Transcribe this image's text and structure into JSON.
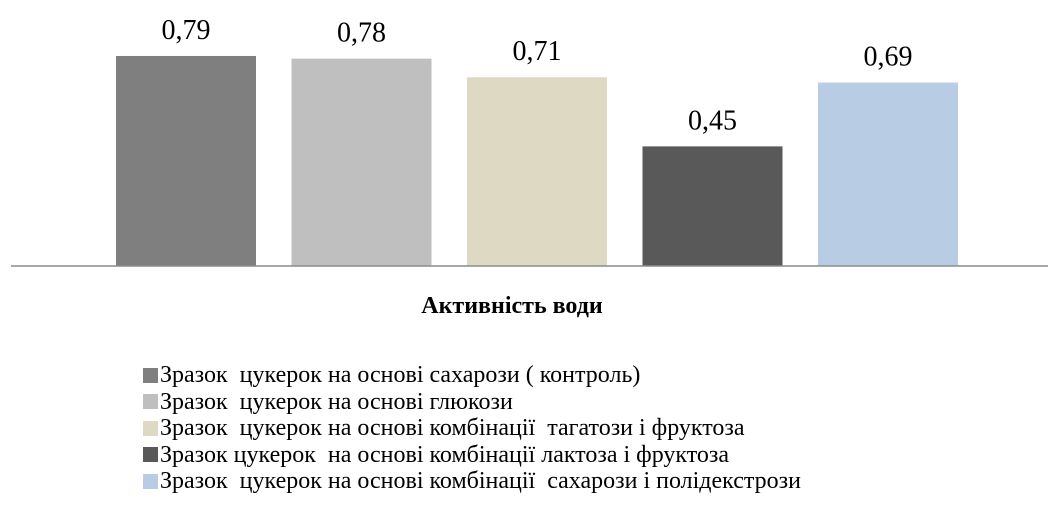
{
  "chart_data": {
    "type": "bar",
    "xlabel": "Активність води",
    "ylim": [
      0,
      0.82
    ],
    "categories": [
      "Зразок  цукерок на основі сахарози ( контроль)",
      "Зразок  цукерок на основі глюкози",
      "Зразок  цукерок на основі комбінації  тагатози і фруктоза",
      "Зразок цукерок  на основі комбінації лактоза і фруктоза",
      "Зразок  цукерок на основі комбінації  сахарози і полідекстрози"
    ],
    "values": [
      0.79,
      0.78,
      0.71,
      0.45,
      0.69
    ],
    "value_labels": [
      "0,79",
      "0,78",
      "0,71",
      "0,45",
      "0,69"
    ],
    "colors": [
      "#7f7f7f",
      "#bfbfbf",
      "#ddd9c3",
      "#595959",
      "#b8cce4"
    ],
    "legend_placement": "bottom",
    "grid": false
  }
}
